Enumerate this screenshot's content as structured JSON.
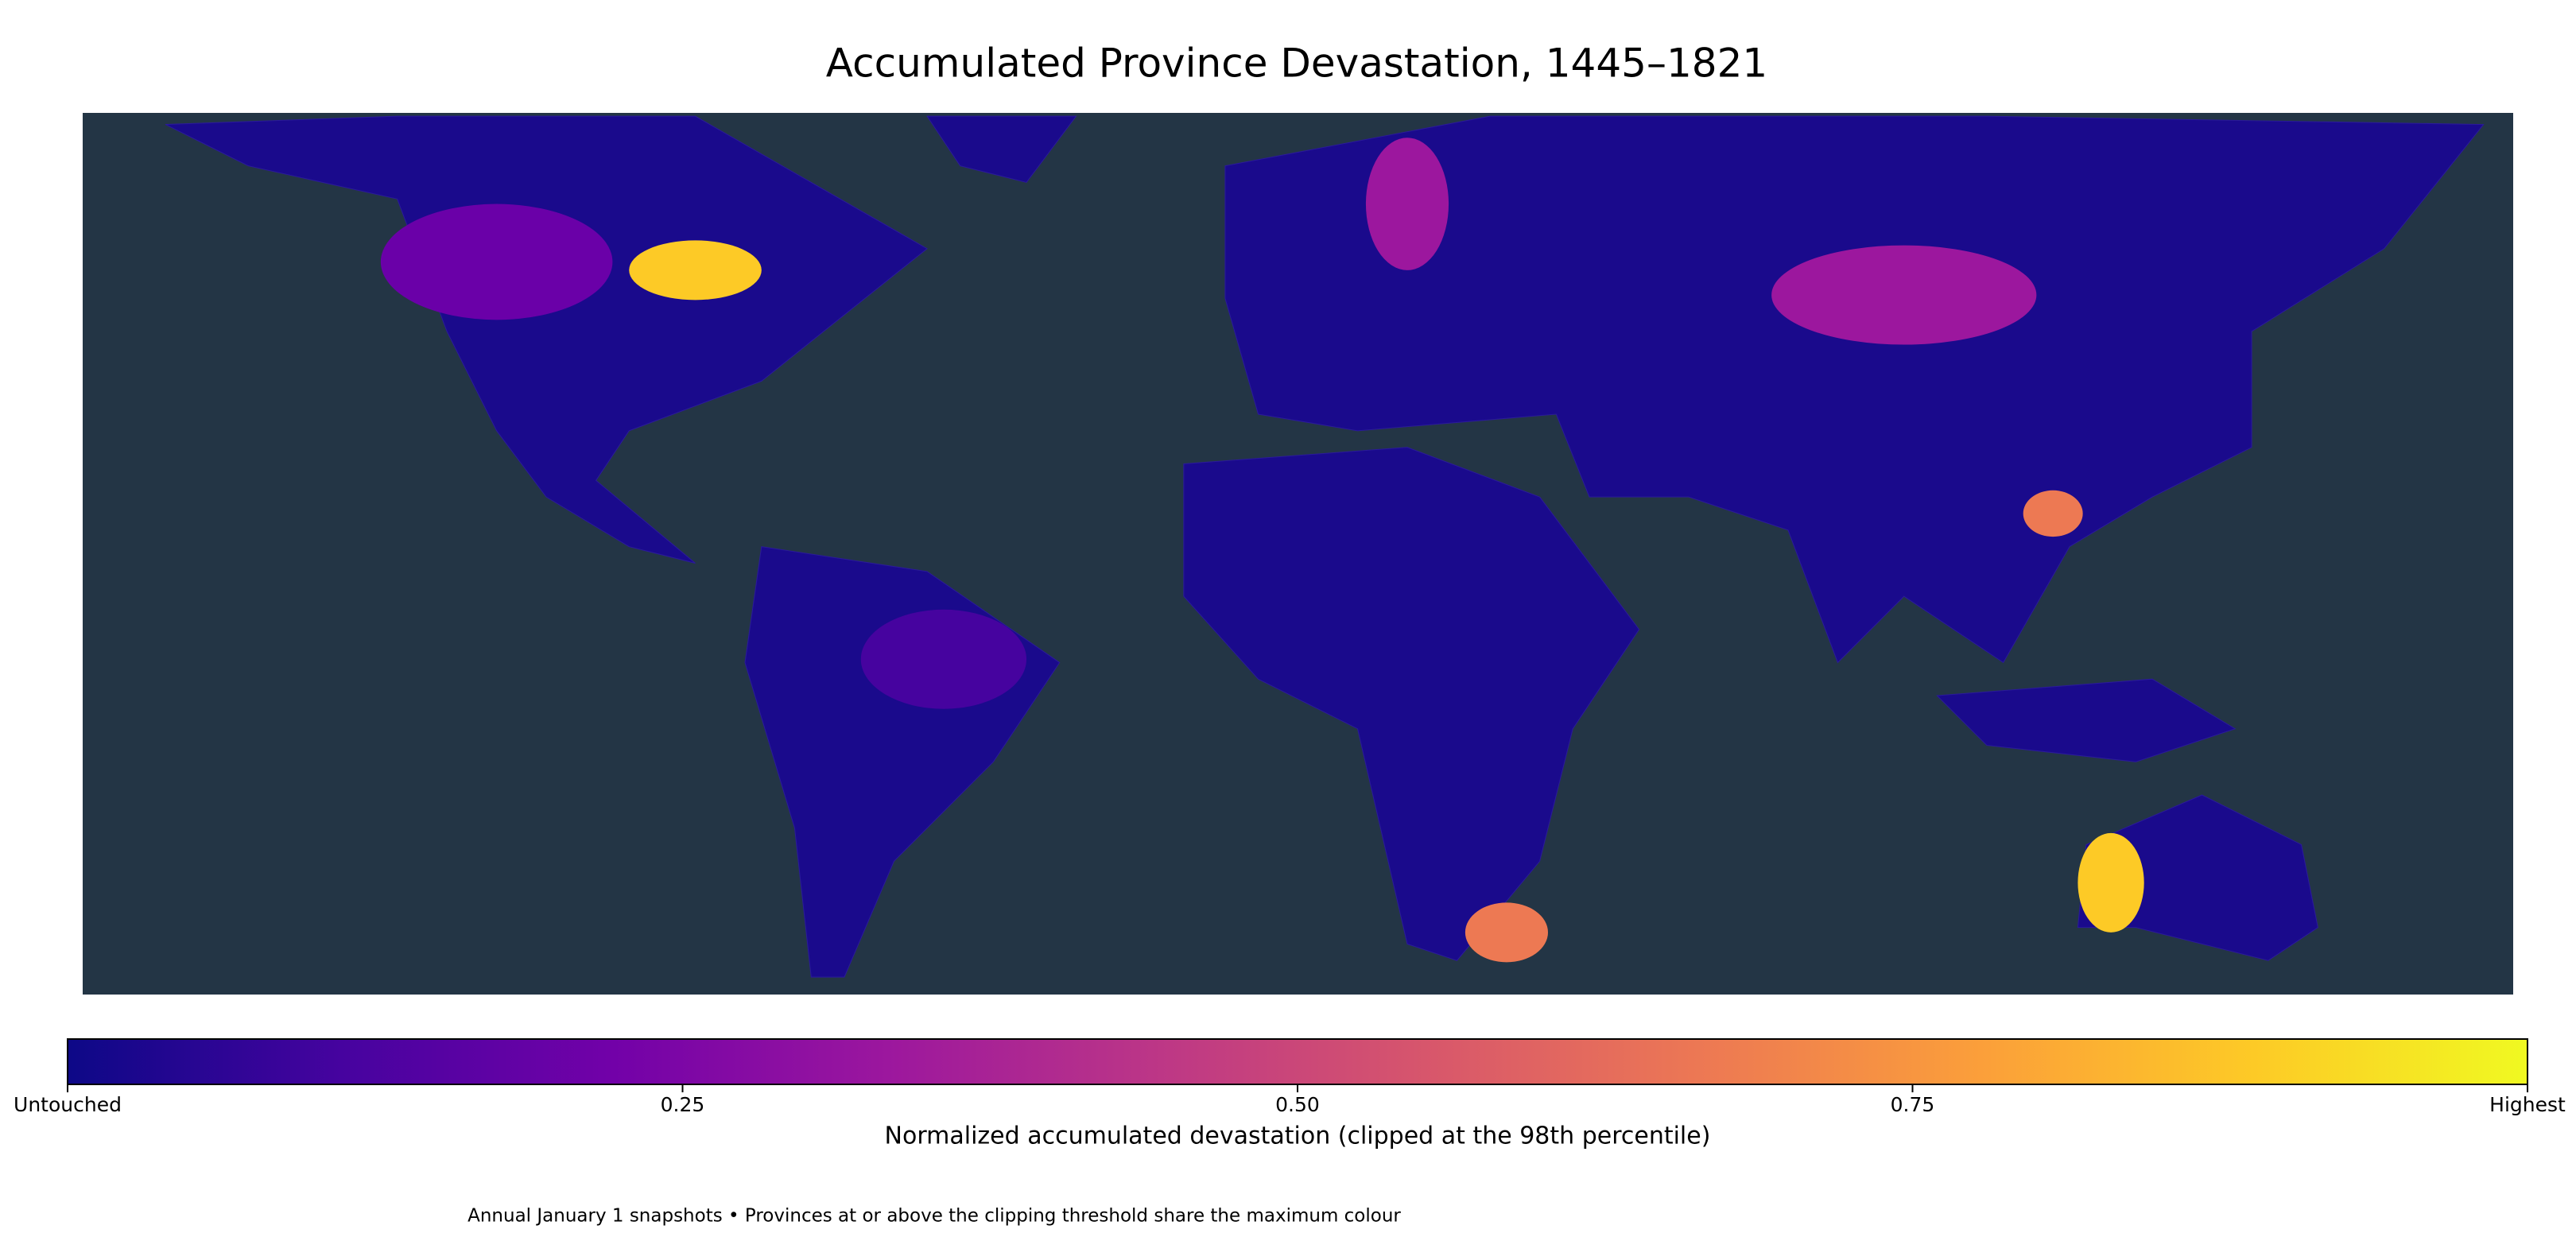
{
  "chart_data": {
    "type": "choropleth",
    "title": "Accumulated Province Devastation, 1445–1821",
    "colorbar": {
      "label": "Normalized accumulated devastation (clipped at the 98th percentile)",
      "lim": [
        0,
        1
      ],
      "ticks": [
        {
          "value": 0,
          "label": "Untouched"
        },
        0.25,
        {
          "value": 0.5,
          "label": "0.50"
        },
        0.75,
        {
          "value": 1,
          "label": "Highest"
        }
      ],
      "colors": [
        "#0d0887",
        "#46039f",
        "#7201a8",
        "#9c179e",
        "#bd3786",
        "#d8576b",
        "#ed7953",
        "#fb9f3a",
        "#fdca26",
        "#f0f921"
      ]
    },
    "ocean_color": "#233545",
    "footnote": "Annual January 1 snapshots • Provinces at or above the clipping threshold share the maximum colour"
  }
}
